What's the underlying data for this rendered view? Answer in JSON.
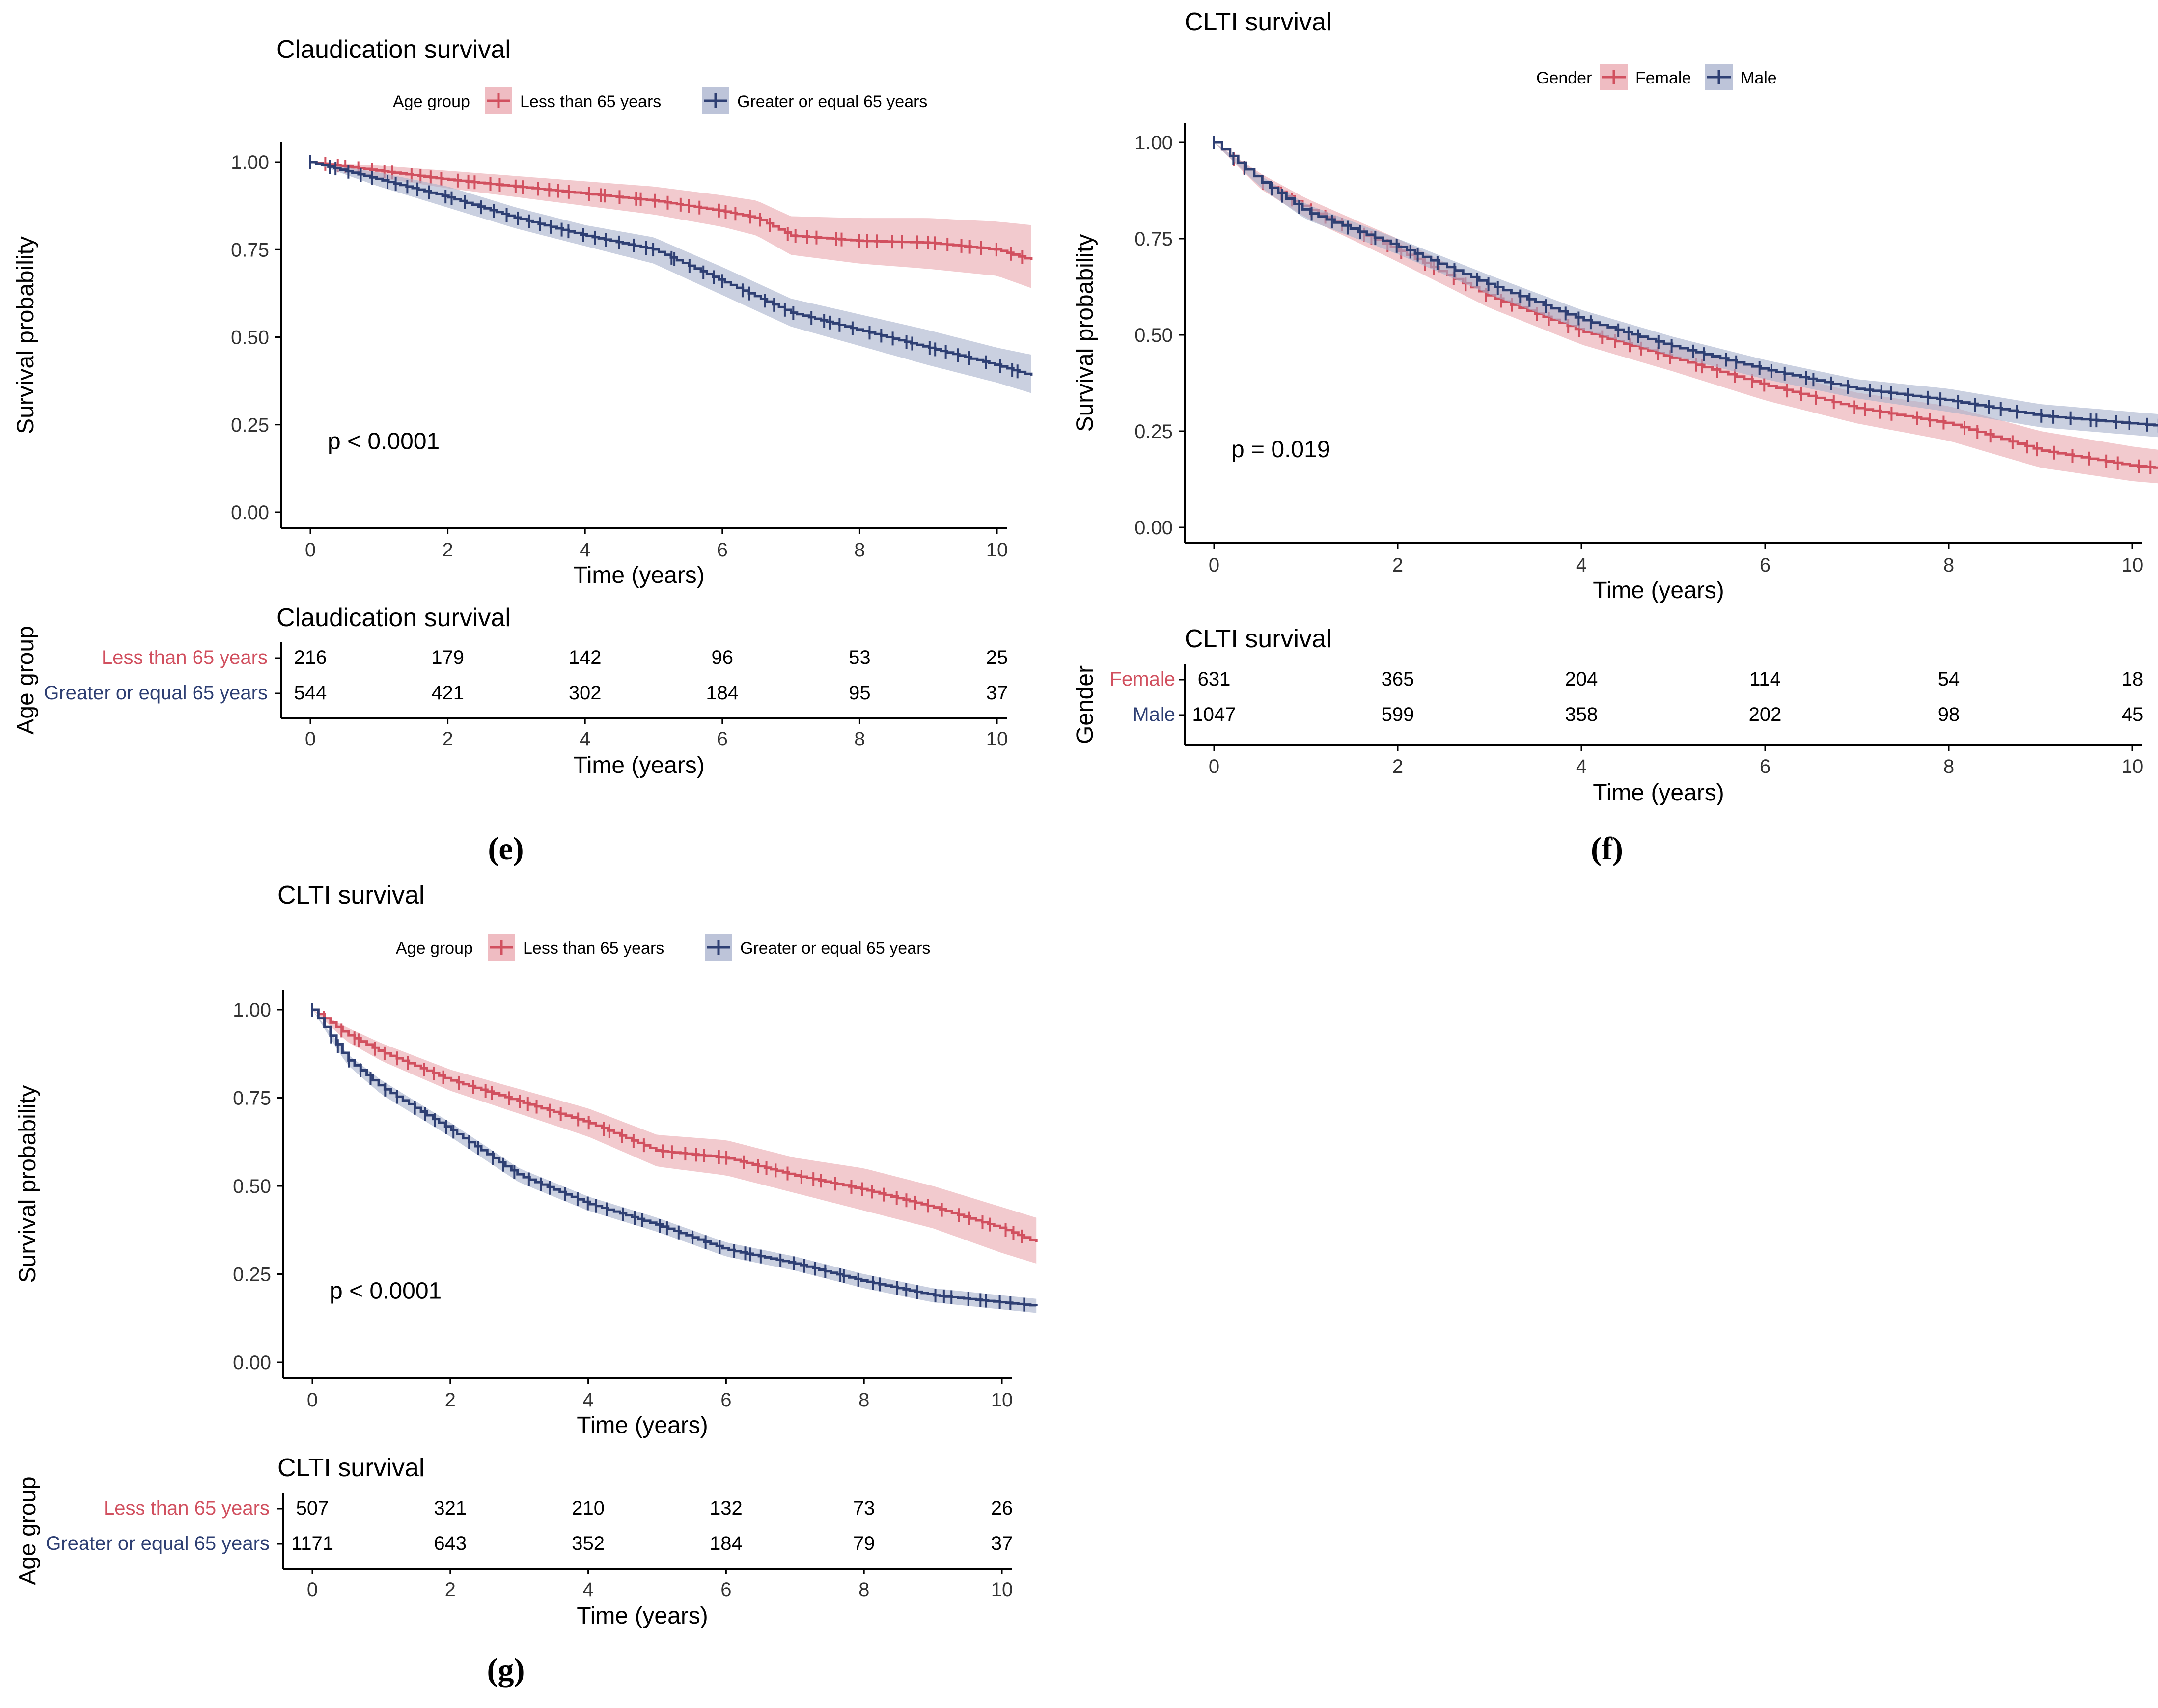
{
  "colors": {
    "red": "#d1505f",
    "blue": "#2e3f73",
    "red_band": "#eaa6ae",
    "blue_band": "#a7b0cc",
    "axis": "#000000",
    "tick_text": "#333333"
  },
  "panels": [
    {
      "id": "e",
      "caption": "(e)",
      "title": "Claudication survival",
      "legend": {
        "title": "Age group",
        "entries": [
          "Less than 65 years",
          "Greater or equal 65 years"
        ]
      },
      "xlabel": "Time (years)",
      "ylabel": "Survival probability",
      "xticks": [
        "0",
        "2",
        "4",
        "6",
        "8",
        "10"
      ],
      "yticks": [
        "0.00",
        "0.25",
        "0.50",
        "0.75",
        "1.00"
      ],
      "pvalue": "p < 0.0001",
      "table": {
        "title": "Claudication survival",
        "ylabel": "Age group",
        "xlabel": "Time (years)",
        "rows": [
          {
            "label": "Less than 65 years",
            "values": [
              "216",
              "179",
              "142",
              "96",
              "53",
              "25"
            ]
          },
          {
            "label": "Greater or equal 65 years",
            "values": [
              "544",
              "421",
              "302",
              "184",
              "95",
              "37"
            ]
          }
        ]
      }
    },
    {
      "id": "f",
      "caption": "(f)",
      "title": "CLTI survival",
      "legend": {
        "title": "Gender",
        "entries": [
          "Female",
          "Male"
        ]
      },
      "xlabel": "Time (years)",
      "ylabel": "Survival probability",
      "xticks": [
        "0",
        "2",
        "4",
        "6",
        "8",
        "10"
      ],
      "yticks": [
        "0.00",
        "0.25",
        "0.50",
        "0.75",
        "1.00"
      ],
      "pvalue": "p = 0.019",
      "table": {
        "title": "CLTI survival",
        "ylabel": "Gender",
        "xlabel": "Time (years)",
        "rows": [
          {
            "label": "Female",
            "values": [
              "631",
              "365",
              "204",
              "114",
              "54",
              "18"
            ]
          },
          {
            "label": "Male",
            "values": [
              "1047",
              "599",
              "358",
              "202",
              "98",
              "45"
            ]
          }
        ]
      }
    },
    {
      "id": "g",
      "caption": "(g)",
      "title": "CLTI survival",
      "legend": {
        "title": "Age group",
        "entries": [
          "Less than 65 years",
          "Greater or equal 65 years"
        ]
      },
      "xlabel": "Time (years)",
      "ylabel": "Survival probability",
      "xticks": [
        "0",
        "2",
        "4",
        "6",
        "8",
        "10"
      ],
      "yticks": [
        "0.00",
        "0.25",
        "0.50",
        "0.75",
        "1.00"
      ],
      "pvalue": "p < 0.0001",
      "table": {
        "title": "CLTI survival",
        "ylabel": "Age group",
        "xlabel": "Time (years)",
        "rows": [
          {
            "label": "Less than 65 years",
            "values": [
              "507",
              "321",
              "210",
              "132",
              "73",
              "26"
            ]
          },
          {
            "label": "Greater or equal 65 years",
            "values": [
              "1171",
              "643",
              "352",
              "184",
              "79",
              "37"
            ]
          }
        ]
      }
    }
  ],
  "chart_data": [
    {
      "type": "line",
      "panel": "e",
      "title": "Claudication survival",
      "xlabel": "Time (years)",
      "ylabel": "Survival probability",
      "xlim": [
        0,
        10.4
      ],
      "ylim": [
        0,
        1
      ],
      "series": [
        {
          "name": "Less than 65 years",
          "x": [
            0,
            1,
            2,
            3,
            4,
            5,
            6,
            6.5,
            7,
            8,
            9,
            10,
            10.5
          ],
          "y": [
            1.0,
            0.975,
            0.95,
            0.93,
            0.91,
            0.89,
            0.86,
            0.84,
            0.79,
            0.775,
            0.77,
            0.75,
            0.72
          ],
          "ci_low": [
            1.0,
            0.955,
            0.925,
            0.9,
            0.875,
            0.85,
            0.815,
            0.79,
            0.735,
            0.71,
            0.695,
            0.675,
            0.64
          ],
          "ci_high": [
            1.0,
            0.99,
            0.975,
            0.96,
            0.945,
            0.93,
            0.905,
            0.89,
            0.845,
            0.84,
            0.84,
            0.83,
            0.82
          ]
        },
        {
          "name": "Greater or equal 65 years",
          "x": [
            0,
            1,
            2,
            3,
            4,
            5,
            6,
            7,
            8,
            9,
            10,
            10.5
          ],
          "y": [
            1.0,
            0.95,
            0.9,
            0.84,
            0.79,
            0.75,
            0.66,
            0.57,
            0.52,
            0.47,
            0.42,
            0.39
          ],
          "ci_low": [
            1.0,
            0.93,
            0.87,
            0.81,
            0.76,
            0.71,
            0.62,
            0.53,
            0.475,
            0.42,
            0.37,
            0.34
          ],
          "ci_high": [
            1.0,
            0.97,
            0.93,
            0.87,
            0.82,
            0.785,
            0.7,
            0.61,
            0.565,
            0.52,
            0.47,
            0.45
          ]
        }
      ]
    },
    {
      "type": "line",
      "panel": "f",
      "title": "CLTI survival",
      "xlabel": "Time (years)",
      "ylabel": "Survival probability",
      "xlim": [
        0,
        10.5
      ],
      "ylim": [
        0,
        1
      ],
      "series": [
        {
          "name": "Female",
          "x": [
            0,
            0.5,
            1,
            2,
            3,
            4,
            5,
            6,
            7,
            8,
            9,
            10,
            10.5
          ],
          "y": [
            1.0,
            0.9,
            0.83,
            0.72,
            0.6,
            0.51,
            0.44,
            0.37,
            0.31,
            0.27,
            0.2,
            0.16,
            0.15
          ],
          "ci_low": [
            1.0,
            0.88,
            0.805,
            0.69,
            0.57,
            0.475,
            0.405,
            0.33,
            0.27,
            0.225,
            0.155,
            0.12,
            0.11
          ],
          "ci_high": [
            1.0,
            0.92,
            0.855,
            0.75,
            0.63,
            0.545,
            0.475,
            0.41,
            0.35,
            0.315,
            0.25,
            0.21,
            0.195
          ]
        },
        {
          "name": "Male",
          "x": [
            0,
            0.5,
            1,
            2,
            3,
            4,
            5,
            6,
            7,
            8,
            9,
            10,
            10.5
          ],
          "y": [
            1.0,
            0.9,
            0.82,
            0.73,
            0.63,
            0.54,
            0.47,
            0.41,
            0.36,
            0.33,
            0.29,
            0.27,
            0.26
          ],
          "ci_low": [
            1.0,
            0.885,
            0.8,
            0.71,
            0.605,
            0.515,
            0.445,
            0.385,
            0.335,
            0.3,
            0.26,
            0.24,
            0.23
          ],
          "ci_high": [
            1.0,
            0.915,
            0.84,
            0.75,
            0.655,
            0.565,
            0.495,
            0.435,
            0.385,
            0.36,
            0.32,
            0.3,
            0.29
          ]
        }
      ]
    },
    {
      "type": "line",
      "panel": "g",
      "title": "CLTI survival",
      "xlabel": "Time (years)",
      "ylabel": "Survival probability",
      "xlim": [
        0,
        10.5
      ],
      "ylim": [
        0,
        1
      ],
      "series": [
        {
          "name": "Less than 65 years",
          "x": [
            0,
            0.5,
            1,
            2,
            3,
            4,
            5,
            6,
            7,
            8,
            9,
            10,
            10.5
          ],
          "y": [
            1.0,
            0.93,
            0.88,
            0.8,
            0.74,
            0.68,
            0.6,
            0.58,
            0.53,
            0.49,
            0.44,
            0.38,
            0.34
          ],
          "ci_low": [
            1.0,
            0.91,
            0.855,
            0.77,
            0.705,
            0.64,
            0.555,
            0.53,
            0.48,
            0.43,
            0.38,
            0.31,
            0.28
          ],
          "ci_high": [
            1.0,
            0.95,
            0.905,
            0.83,
            0.775,
            0.72,
            0.645,
            0.63,
            0.58,
            0.55,
            0.5,
            0.44,
            0.41
          ]
        },
        {
          "name": "Greater or equal 65 years",
          "x": [
            0,
            0.5,
            1,
            2,
            3,
            4,
            5,
            6,
            7,
            8,
            9,
            10,
            10.5
          ],
          "y": [
            1.0,
            0.86,
            0.78,
            0.66,
            0.53,
            0.45,
            0.39,
            0.32,
            0.28,
            0.23,
            0.19,
            0.17,
            0.16
          ],
          "ci_low": [
            1.0,
            0.845,
            0.76,
            0.64,
            0.51,
            0.43,
            0.37,
            0.3,
            0.26,
            0.21,
            0.17,
            0.15,
            0.14
          ],
          "ci_high": [
            1.0,
            0.875,
            0.8,
            0.68,
            0.55,
            0.47,
            0.41,
            0.34,
            0.3,
            0.25,
            0.21,
            0.19,
            0.18
          ]
        }
      ]
    }
  ]
}
